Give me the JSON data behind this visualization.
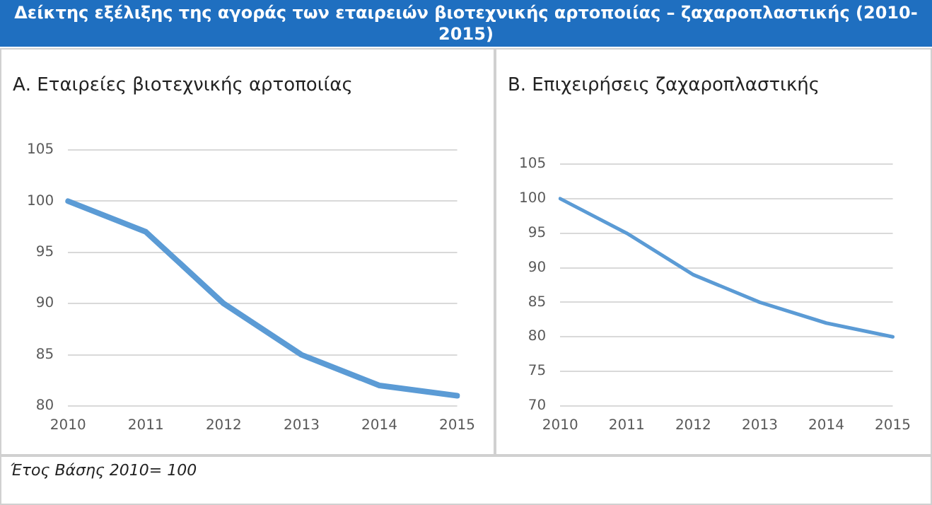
{
  "chart_data": [
    {
      "type": "line",
      "title": "Δείκτης εξέλιξης της αγοράς των εταιρειών βιοτεχνικής αρτοποιίας – ζαχαροπλαστικής (2010-2015)",
      "subtitle": "Α. Εταιρείες βιοτεχνικής αρτοποιίας",
      "categories": [
        "2010",
        "2011",
        "2012",
        "2013",
        "2014",
        "2015"
      ],
      "series": [
        {
          "color": "#5b9bd5",
          "values": [
            100,
            97,
            90,
            85,
            82,
            81
          ]
        }
      ],
      "ylim": [
        80,
        105
      ],
      "yticks": [
        80,
        85,
        90,
        95,
        100,
        105
      ],
      "grid": "y",
      "legend": false,
      "marker": "none",
      "line_style": "solid",
      "annotations": [
        "Έτος Βάσης 2010= 100"
      ]
    },
    {
      "type": "line",
      "title": "Β. Επιχειρήσεις ζαχαροπλαστικής",
      "categories": [
        "2010",
        "2011",
        "2012",
        "2013",
        "2014",
        "2015"
      ],
      "series": [
        {
          "color": "#5b9bd5",
          "values": [
            100,
            95,
            89,
            85,
            82,
            80
          ]
        }
      ],
      "ylim": [
        70,
        105
      ],
      "yticks": [
        70,
        75,
        80,
        85,
        90,
        95,
        100,
        105
      ],
      "grid": "y",
      "legend": false,
      "marker": "none",
      "line_style": "solid"
    }
  ]
}
